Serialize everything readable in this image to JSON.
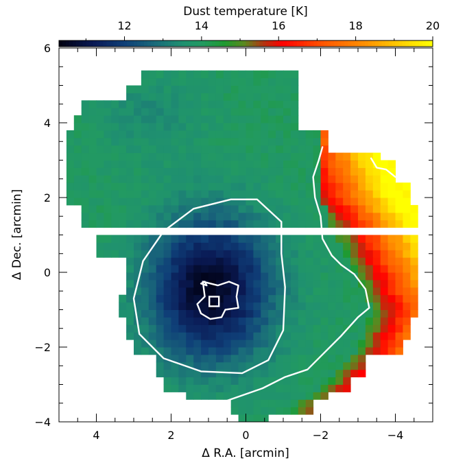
{
  "chart_data": {
    "type": "heatmap",
    "colorbar": {
      "title": "Dust temperature [K]",
      "range": [
        10.3,
        20.0
      ],
      "ticks": [
        12,
        14,
        16,
        18,
        20
      ],
      "tick_labels": [
        "12",
        "14",
        "16",
        "18",
        "20"
      ],
      "stops": [
        {
          "t": 10.3,
          "color": "#000010"
        },
        {
          "t": 11.2,
          "color": "#0a1a55"
        },
        {
          "t": 12.0,
          "color": "#0f3f78"
        },
        {
          "t": 12.8,
          "color": "#1a6b7a"
        },
        {
          "t": 13.5,
          "color": "#1f9070"
        },
        {
          "t": 14.0,
          "color": "#229a62"
        },
        {
          "t": 14.6,
          "color": "#1f9a30"
        },
        {
          "t": 15.1,
          "color": "#5a8a20"
        },
        {
          "t": 15.6,
          "color": "#b03510"
        },
        {
          "t": 16.1,
          "color": "#ff0000"
        },
        {
          "t": 17.2,
          "color": "#ff5a00"
        },
        {
          "t": 18.3,
          "color": "#ff9400"
        },
        {
          "t": 19.2,
          "color": "#ffd200"
        },
        {
          "t": 20.0,
          "color": "#ffff00"
        }
      ]
    },
    "x_axis": {
      "label": "Δ R.A. [arcmin]",
      "range": [
        5,
        -5
      ],
      "ticks": [
        4,
        2,
        0,
        -2,
        -4
      ],
      "tick_labels": [
        "4",
        "2",
        "0",
        "−2",
        "−4"
      ]
    },
    "y_axis": {
      "label": "Δ Dec. [arcmin]",
      "range": [
        -4,
        6
      ],
      "ticks": [
        -4,
        -2,
        0,
        2,
        4,
        6
      ],
      "tick_labels": [
        "−4",
        "−2",
        "0",
        "2",
        "4",
        "6"
      ]
    },
    "temperature_field": {
      "core_center": [
        0.95,
        -0.45
      ],
      "core_temperature": 10.5,
      "core_sigma_ra": 1.2,
      "core_sigma_dec": 1.4,
      "ambient_temperature": 14.0,
      "hot_rim": [
        {
          "dec": -3.6,
          "ra": -1.3
        },
        {
          "dec": -3.0,
          "ra": -2.2
        },
        {
          "dec": -2.0,
          "ra": -3.0
        },
        {
          "dec": -1.0,
          "ra": -3.35
        },
        {
          "dec": 0.0,
          "ra": -2.9
        },
        {
          "dec": 1.0,
          "ra": -2.4
        },
        {
          "dec": 2.0,
          "ra": -2.0
        },
        {
          "dec": 3.4,
          "ra": -1.95
        }
      ],
      "hot_gradient": 2.4,
      "hot_max": 20.0
    },
    "coverage": [
      {
        "dec": 5.15,
        "ra_max": 2.75,
        "ra_min": -1.35
      },
      {
        "dec": 4.85,
        "ra_max": 3.1,
        "ra_min": -1.35
      },
      {
        "dec": 4.45,
        "ra_max": 4.35,
        "ra_min": -1.35
      },
      {
        "dec": 4.0,
        "ra_max": 4.6,
        "ra_min": -1.35
      },
      {
        "dec": 3.45,
        "ra_max": 4.75,
        "ra_min": -2.15
      },
      {
        "dec": 3.15,
        "ra_max": 4.75,
        "ra_min": -3.55
      },
      {
        "dec": 2.7,
        "ra_max": 4.75,
        "ra_min": -4.1
      },
      {
        "dec": 2.05,
        "ra_max": 4.75,
        "ra_min": -4.45
      },
      {
        "dec": 1.55,
        "ra_max": 4.3,
        "ra_min": -4.6
      },
      {
        "dec": 0.75,
        "ra_max": 3.95,
        "ra_min": -4.6
      },
      {
        "dec": 0.25,
        "ra_max": 3.25,
        "ra_min": -4.6
      },
      {
        "dec": -0.35,
        "ra_max": 3.25,
        "ra_min": -4.6
      },
      {
        "dec": -0.85,
        "ra_max": 3.45,
        "ra_min": -4.6
      },
      {
        "dec": -1.45,
        "ra_max": 3.25,
        "ra_min": -4.45
      },
      {
        "dec": -1.95,
        "ra_max": 2.95,
        "ra_min": -4.3
      },
      {
        "dec": -2.45,
        "ra_max": 2.45,
        "ra_min": -3.15
      },
      {
        "dec": -2.95,
        "ra_max": 2.25,
        "ra_min": -2.75
      },
      {
        "dec": -3.35,
        "ra_max": 1.65,
        "ra_min": -2.2
      },
      {
        "dec": -3.6,
        "ra_max": 0.4,
        "ra_min": -1.85
      },
      {
        "dec": -3.95,
        "ra_max": 0.15,
        "ra_min": -0.65
      }
    ],
    "contours": [
      {
        "name": "outer_core_contour",
        "points": [
          [
            -0.95,
            1.35
          ],
          [
            -0.3,
            1.95
          ],
          [
            0.4,
            1.95
          ],
          [
            1.4,
            1.7
          ],
          [
            2.2,
            1.1
          ],
          [
            2.75,
            0.3
          ],
          [
            3.0,
            -0.7
          ],
          [
            2.85,
            -1.65
          ],
          [
            2.2,
            -2.3
          ],
          [
            1.2,
            -2.65
          ],
          [
            0.1,
            -2.7
          ],
          [
            -0.6,
            -2.35
          ],
          [
            -1.0,
            -1.55
          ],
          [
            -1.05,
            -0.4
          ],
          [
            -0.95,
            0.5
          ],
          [
            -0.95,
            1.35
          ]
        ]
      },
      {
        "name": "inner_core_contour",
        "points": [
          [
            1.15,
            -0.25
          ],
          [
            0.75,
            -0.35
          ],
          [
            0.45,
            -0.25
          ],
          [
            0.2,
            -0.35
          ],
          [
            0.25,
            -0.65
          ],
          [
            0.2,
            -0.95
          ],
          [
            0.55,
            -1.0
          ],
          [
            0.65,
            -1.2
          ],
          [
            0.95,
            -1.25
          ],
          [
            1.2,
            -1.1
          ],
          [
            1.3,
            -0.85
          ],
          [
            1.1,
            -0.65
          ],
          [
            1.15,
            -0.25
          ]
        ]
      },
      {
        "name": "inner_core_tick",
        "points": [
          [
            1.05,
            -0.35
          ],
          [
            1.2,
            -0.3
          ],
          [
            1.1,
            -0.25
          ],
          [
            1.05,
            -0.35
          ]
        ]
      },
      {
        "name": "eastern_rim_contour",
        "points": [
          [
            0.55,
            -3.45
          ],
          [
            -0.45,
            -3.1
          ],
          [
            -1.05,
            -2.8
          ],
          [
            -1.65,
            -2.6
          ],
          [
            -2.1,
            -2.15
          ],
          [
            -2.55,
            -1.7
          ],
          [
            -3.0,
            -1.2
          ],
          [
            -3.3,
            -0.95
          ],
          [
            -3.2,
            -0.45
          ],
          [
            -2.9,
            -0.05
          ],
          [
            -2.55,
            0.2
          ],
          [
            -2.3,
            0.45
          ],
          [
            -2.05,
            0.9
          ],
          [
            -2.0,
            1.5
          ],
          [
            -1.85,
            2.0
          ],
          [
            -1.8,
            2.55
          ],
          [
            -1.95,
            3.0
          ],
          [
            -2.05,
            3.35
          ]
        ]
      },
      {
        "name": "northeast_rim_contour",
        "points": [
          [
            -3.35,
            3.05
          ],
          [
            -3.5,
            2.8
          ],
          [
            -3.75,
            2.75
          ],
          [
            -4.0,
            2.55
          ]
        ]
      }
    ],
    "marker": {
      "name": "source-position",
      "shape": "square",
      "ra": 0.85,
      "dec": -0.78
    }
  }
}
